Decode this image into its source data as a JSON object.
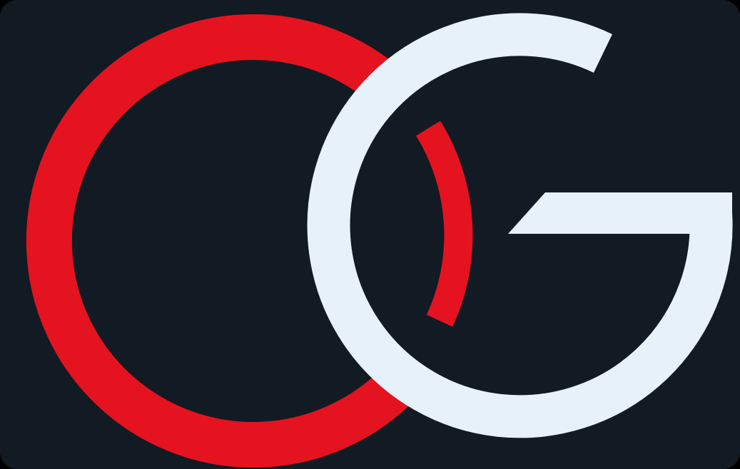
{
  "logo": {
    "monogram": "CG",
    "letters": [
      {
        "letter": "C",
        "color": "#e5131f"
      },
      {
        "letter": "G",
        "color": "#e6f1f9"
      }
    ],
    "background_color": "#121a24"
  }
}
